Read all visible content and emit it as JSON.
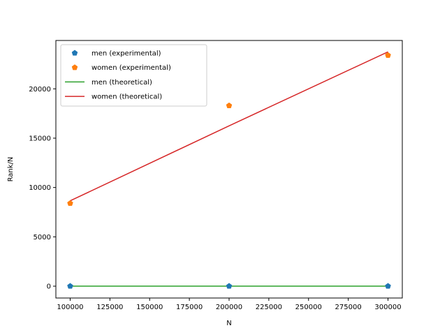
{
  "chart_data": {
    "type": "line",
    "title": "",
    "xlabel": "N",
    "ylabel": "Rank/N",
    "xlim": [
      91000,
      309000
    ],
    "ylim": [
      -1200,
      24900
    ],
    "xticks": [
      100000,
      125000,
      150000,
      175000,
      200000,
      225000,
      250000,
      275000,
      300000
    ],
    "yticks": [
      0,
      5000,
      10000,
      15000,
      20000
    ],
    "grid": false,
    "legend_position": "top-left",
    "series": [
      {
        "name": "men (experimental)",
        "kind": "scatter",
        "marker": "pentagon",
        "color": "#1f77b4",
        "x": [
          100000,
          200000,
          300000
        ],
        "y": [
          5,
          5,
          5
        ]
      },
      {
        "name": "women (experimental)",
        "kind": "scatter",
        "marker": "pentagon",
        "color": "#ff7f0e",
        "x": [
          100000,
          200000,
          300000
        ],
        "y": [
          8400,
          18300,
          23400
        ]
      },
      {
        "name": "men (theoretical)",
        "kind": "line",
        "color": "#2ca02c",
        "x": [
          100000,
          200000,
          300000
        ],
        "y": [
          5,
          5,
          5
        ]
      },
      {
        "name": "women (theoretical)",
        "kind": "line",
        "color": "#d62728",
        "x": [
          100000,
          200000,
          300000
        ],
        "y": [
          8650,
          16250,
          23750
        ]
      }
    ]
  }
}
